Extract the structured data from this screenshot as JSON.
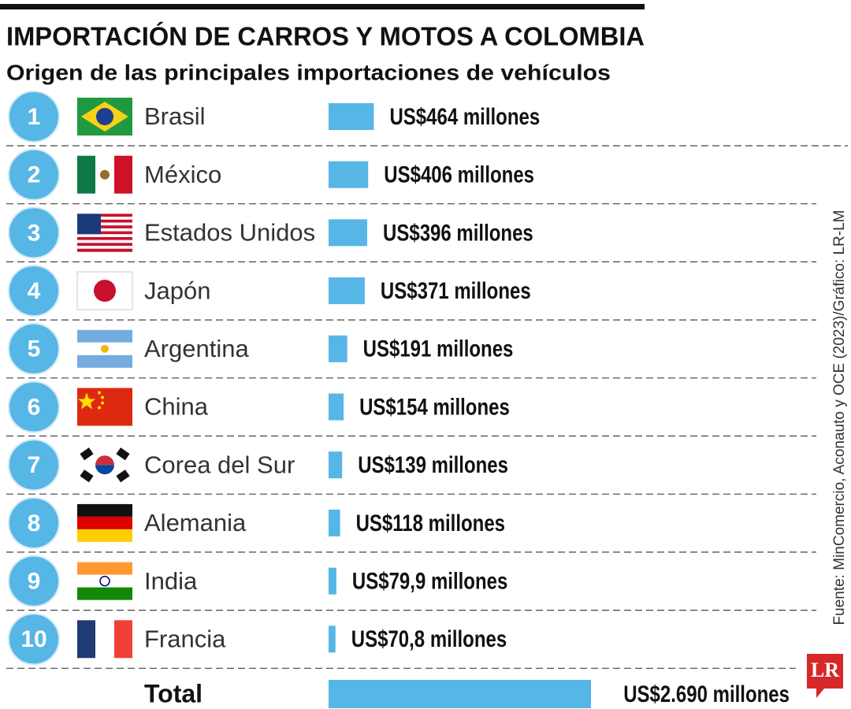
{
  "chart_data": {
    "type": "bar",
    "title": "IMPORTACIÓN DE CARROS Y MOTOS A COLOMBIA",
    "subtitle": "Origen de las principales importaciones de vehículos",
    "ranks": [
      1,
      2,
      3,
      4,
      5,
      6,
      7,
      8,
      9,
      10
    ],
    "categories": [
      "Brasil",
      "México",
      "Estados Unidos",
      "Japón",
      "Argentina",
      "China",
      "Corea del Sur",
      "Alemania",
      "India",
      "Francia"
    ],
    "values": [
      464,
      406,
      396,
      371,
      191,
      154,
      139,
      118,
      79.9,
      70.8
    ],
    "value_labels": [
      "US$464 millones",
      "US$406 millones",
      "US$396 millones",
      "US$371 millones",
      "US$191 millones",
      "US$154 millones",
      "US$139 millones",
      "US$118 millones",
      "US$79,9 millones",
      "US$70,8 millones"
    ],
    "color": "#56b6e6",
    "total": {
      "label": "Total",
      "value": 2690,
      "value_label": "US$2.690 millones"
    },
    "source": "Fuente: MinComercio, Aconauto y OCE (2023)/Gráfico: LR-LM",
    "logo": "LR"
  }
}
